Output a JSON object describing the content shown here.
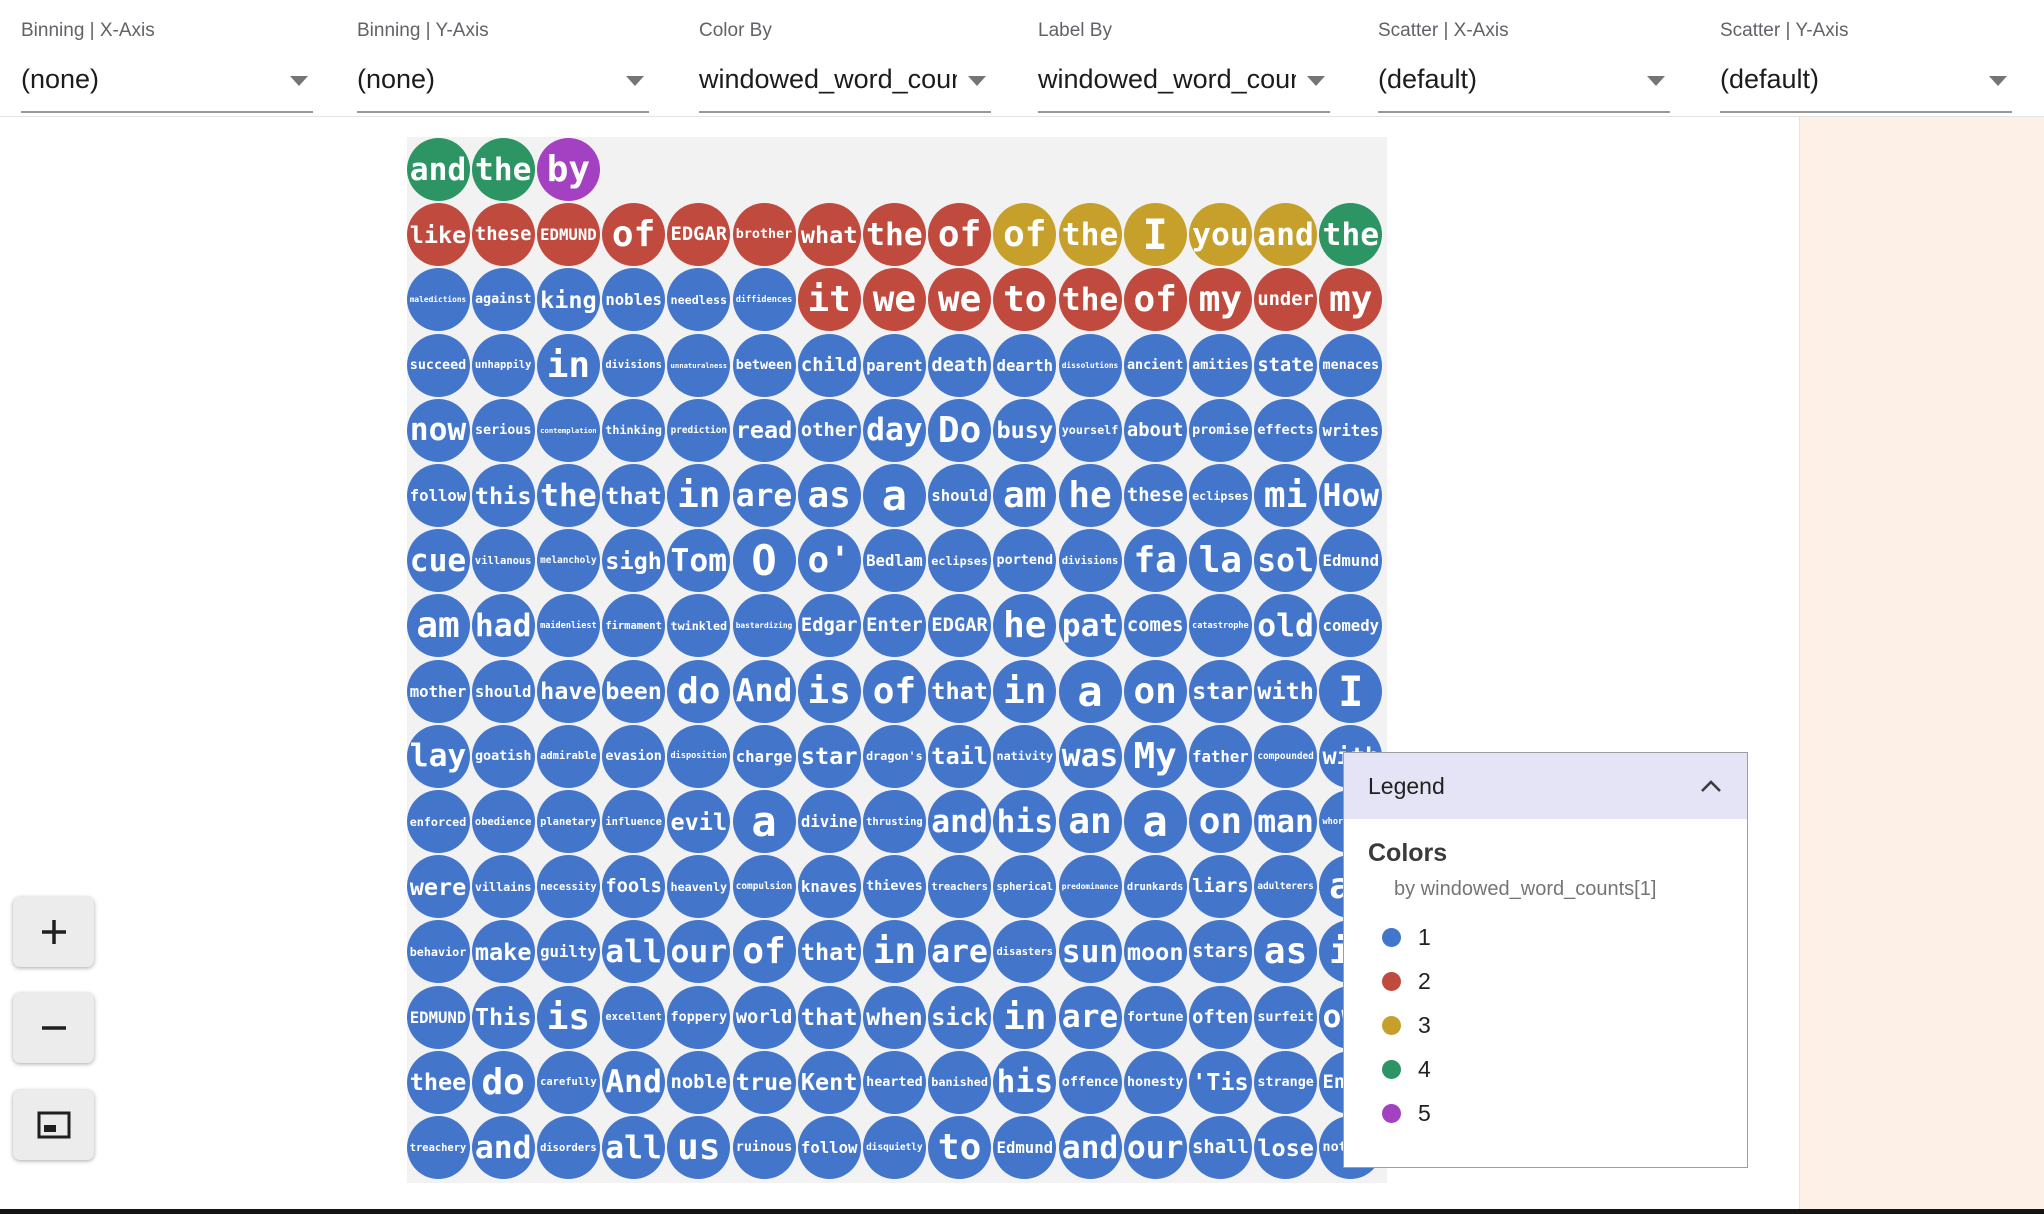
{
  "toolbar": {
    "controls": [
      {
        "label": "Binning | X-Axis",
        "value": "(none)"
      },
      {
        "label": "Binning | Y-Axis",
        "value": "(none)"
      },
      {
        "label": "Color By",
        "value": "windowed_word_counts[1]"
      },
      {
        "label": "Label By",
        "value": "windowed_word_counts[0]"
      },
      {
        "label": "Scatter | X-Axis",
        "value": "(default)"
      },
      {
        "label": "Scatter | Y-Axis",
        "value": "(default)"
      }
    ]
  },
  "palette": {
    "b": "#4376ca",
    "r": "#c04a3e",
    "y": "#c6a02b",
    "g": "#2d9464",
    "p": "#a440c2"
  },
  "icons": {
    "zoom_in": "plus-icon",
    "zoom_out": "minus-icon",
    "zoom_fit": "fit-screen-icon",
    "legend_collapse": "chevron-up-icon"
  },
  "legend": {
    "title": "Legend",
    "section_title": "Colors",
    "subtitle": "by windowed_word_counts[1]",
    "items": [
      {
        "label": "1",
        "color": "#4376ca"
      },
      {
        "label": "2",
        "color": "#c04a3e"
      },
      {
        "label": "3",
        "color": "#c6a02b"
      },
      {
        "label": "4",
        "color": "#2d9464"
      },
      {
        "label": "5",
        "color": "#a440c2"
      }
    ]
  },
  "grid": {
    "rows": [
      [
        [
          "and",
          "g"
        ],
        [
          "the",
          "g"
        ],
        [
          "by",
          "p"
        ]
      ],
      [
        [
          "like",
          "r"
        ],
        [
          "these",
          "r"
        ],
        [
          "EDMUND",
          "r"
        ],
        [
          "of",
          "r"
        ],
        [
          "EDGAR",
          "r"
        ],
        [
          "brother",
          "r"
        ],
        [
          "what",
          "r"
        ],
        [
          "the",
          "r"
        ],
        [
          "of",
          "r"
        ],
        [
          "of",
          "y"
        ],
        [
          "the",
          "y"
        ],
        [
          "I",
          "y"
        ],
        [
          "you",
          "y"
        ],
        [
          "and",
          "y"
        ],
        [
          "the",
          "g"
        ]
      ],
      [
        "maledictions",
        "against",
        "king",
        "nobles",
        "needless",
        "diffidences",
        [
          "it",
          "r"
        ],
        [
          "we",
          "r"
        ],
        [
          "we",
          "r"
        ],
        [
          "to",
          "r"
        ],
        [
          "the",
          "r"
        ],
        [
          "of",
          "r"
        ],
        [
          "my",
          "r"
        ],
        [
          "under",
          "r"
        ],
        [
          "my",
          "r"
        ]
      ],
      [
        "succeed",
        "unhappily",
        "in",
        "divisions",
        "unnaturalness",
        "between",
        "child",
        "parent",
        "death",
        "dearth",
        "dissolutions",
        "ancient",
        "amities",
        "state",
        "menaces"
      ],
      [
        "now",
        "serious",
        "contemplation",
        "thinking",
        "prediction",
        "read",
        "other",
        "day",
        "Do",
        "busy",
        "yourself",
        "about",
        "promise",
        "effects",
        "writes"
      ],
      [
        "follow",
        "this",
        "the",
        "that",
        "in",
        "are",
        "as",
        "a",
        "should",
        "am",
        "he",
        "these",
        "eclipses",
        "mi",
        "How"
      ],
      [
        "cue",
        "villanous",
        "melancholy",
        "sigh",
        "Tom",
        "O",
        "o'",
        "Bedlam",
        "eclipses",
        "portend",
        "divisions",
        "fa",
        "la",
        "sol",
        "Edmund"
      ],
      [
        "am",
        "had",
        "maidenliest",
        "firmament",
        "twinkled",
        "bastardizing",
        "Edgar",
        "Enter",
        "EDGAR",
        "he",
        "pat",
        "comes",
        "catastrophe",
        "old",
        "comedy"
      ],
      [
        "mother",
        "should",
        "have",
        "been",
        "do",
        "And",
        "is",
        "of",
        "that",
        "in",
        "a",
        "on",
        "star",
        "with",
        "I"
      ],
      [
        "lay",
        "goatish",
        "admirable",
        "evasion",
        "disposition",
        "charge",
        "star",
        "dragon's",
        "tail",
        "nativity",
        "was",
        "My",
        "father",
        "compounded",
        "with"
      ],
      [
        "enforced",
        "obedience",
        "planetary",
        "influence",
        "evil",
        "a",
        "divine",
        "thrusting",
        "and",
        "his",
        "an",
        "a",
        "on",
        "man",
        "whoremaster"
      ],
      [
        "were",
        "villains",
        "necessity",
        "fools",
        "heavenly",
        "compulsion",
        "knaves",
        "thieves",
        "treachers",
        "spherical",
        "predominance",
        "drunkards",
        "liars",
        "adulterers",
        "an"
      ],
      [
        "behavior",
        "make",
        "guilty",
        "all",
        "our",
        "of",
        "that",
        "in",
        "are",
        "disasters",
        "sun",
        "moon",
        "stars",
        "as",
        "if"
      ],
      [
        "EDMUND",
        "This",
        "is",
        "excellent",
        "foppery",
        "world",
        "that",
        "when",
        "sick",
        "in",
        "are",
        "fortune",
        "often",
        "surfeit",
        "own"
      ],
      [
        "thee",
        "do",
        "carefully",
        "And",
        "noble",
        "true",
        "Kent",
        "hearted",
        "banished",
        "his",
        "offence",
        "honesty",
        "'Tis",
        "strange",
        "Enter"
      ],
      [
        "treachery",
        "and",
        "disorders",
        "all",
        "us",
        "ruinous",
        "follow",
        "disquietly",
        "to",
        "Edmund",
        "and",
        "our",
        "shall",
        "lose",
        "nothing"
      ]
    ]
  }
}
